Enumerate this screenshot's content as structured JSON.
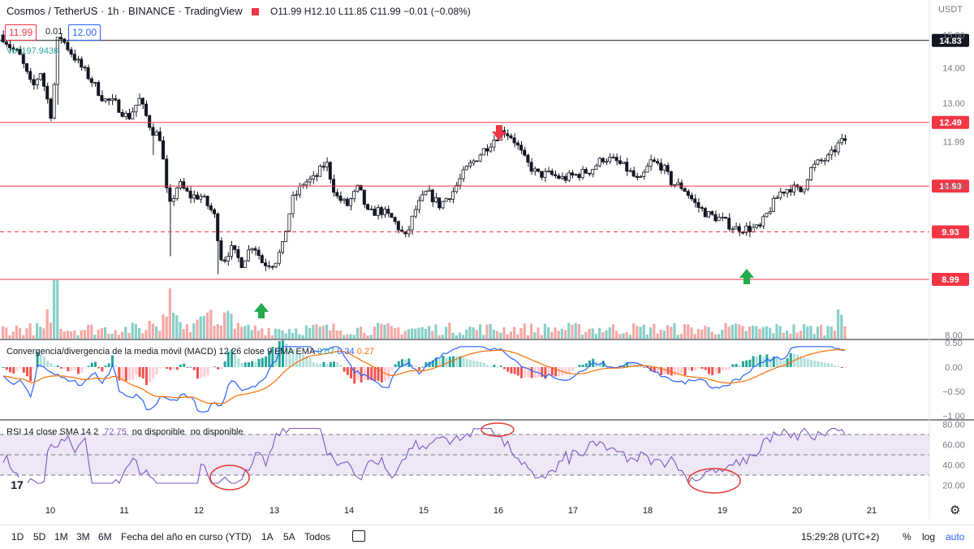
{
  "header": {
    "title": "Cosmos / TetherUS · 1h · BINANCE · TradingView",
    "ohlc": "O11.99 H12.10 L11.85 C11.99 −0.01 (−0.08%)",
    "bid": "11.99",
    "spread": "0.01",
    "ask": "12.00",
    "currency": "USDT"
  },
  "volume_label": "Vol  197.943K",
  "macd_label": "Convergencia/divergencia de la media móvil (MACD) 12 26 close 9 EMA EMA",
  "macd_values": [
    "0.07",
    "0.34",
    "0.27"
  ],
  "rsi_label": "RSI 14 close SMA 14 2",
  "rsi_values": [
    "72.75",
    "no disponible",
    "no disponible"
  ],
  "bottom": {
    "ranges": [
      "1D",
      "5D",
      "1M",
      "3M",
      "6M",
      "Fecha del año en curso (YTD)",
      "1A",
      "5A",
      "Todos"
    ],
    "time": "15:29:28 (UTC+2)",
    "pct": "%",
    "log": "log",
    "auto": "auto"
  },
  "colors": {
    "up": "#26a69a",
    "down": "#ef5350",
    "level_red": "#f23645",
    "macd": "#2962ff",
    "signal": "#ff6d00",
    "rsi": "#7e57c2",
    "rsi_band": "#ede7f6",
    "arrow_up": "#22ab4a",
    "arrow_down": "#f23645",
    "circle": "#e53935"
  },
  "chart_data": [
    {
      "type": "candlestick",
      "title": "Cosmos / TetherUS 1h",
      "x_ticks": [
        "10",
        "11",
        "12",
        "13",
        "14",
        "15",
        "16",
        "17",
        "18",
        "19",
        "20",
        "21"
      ],
      "y_ticks": [
        "15.00",
        "14.00",
        "13.00",
        "11.99",
        "10.93",
        "8.00"
      ],
      "ylim": [
        7.9,
        15.6
      ],
      "scale": "log",
      "levels": [
        {
          "value": 14.83,
          "label": "14.83",
          "color": "#131722",
          "style": "solid"
        },
        {
          "value": 12.49,
          "label": "12.49",
          "color": "#f23645",
          "style": "solid"
        },
        {
          "value": 10.93,
          "label": "10.93",
          "color": "#f23645",
          "style": "solid"
        },
        {
          "value": 9.93,
          "label": "9.93",
          "color": "#f23645",
          "style": "dashed"
        },
        {
          "value": 8.99,
          "label": "8.99",
          "color": "#f23645",
          "style": "solid"
        }
      ],
      "anchors": [
        [
          0,
          15.0
        ],
        [
          12,
          14.6
        ],
        [
          22,
          14.4
        ],
        [
          38,
          13.4
        ],
        [
          48,
          13.9
        ],
        [
          62,
          12.6
        ],
        [
          70,
          15.05
        ],
        [
          82,
          14.6
        ],
        [
          96,
          14.1
        ],
        [
          112,
          13.6
        ],
        [
          126,
          13.1
        ],
        [
          140,
          13.0
        ],
        [
          156,
          12.6
        ],
        [
          170,
          13.1
        ],
        [
          185,
          12.3
        ],
        [
          196,
          12.1
        ],
        [
          206,
          10.4
        ],
        [
          218,
          11.0
        ],
        [
          232,
          10.7
        ],
        [
          246,
          10.7
        ],
        [
          262,
          10.3
        ],
        [
          272,
          9.3
        ],
        [
          282,
          9.6
        ],
        [
          296,
          9.3
        ],
        [
          310,
          9.7
        ],
        [
          322,
          9.3
        ],
        [
          336,
          9.3
        ],
        [
          346,
          9.6
        ],
        [
          358,
          10.6
        ],
        [
          372,
          11.0
        ],
        [
          386,
          11.1
        ],
        [
          400,
          11.5
        ],
        [
          412,
          10.7
        ],
        [
          426,
          10.5
        ],
        [
          440,
          10.9
        ],
        [
          452,
          10.3
        ],
        [
          466,
          10.4
        ],
        [
          482,
          10.2
        ],
        [
          498,
          9.8
        ],
        [
          510,
          10.4
        ],
        [
          524,
          10.8
        ],
        [
          540,
          10.5
        ],
        [
          556,
          10.8
        ],
        [
          572,
          11.3
        ],
        [
          590,
          11.7
        ],
        [
          604,
          12.0
        ],
        [
          618,
          12.3
        ],
        [
          630,
          12.1
        ],
        [
          646,
          11.5
        ],
        [
          660,
          11.2
        ],
        [
          676,
          11.2
        ],
        [
          692,
          11.1
        ],
        [
          710,
          11.2
        ],
        [
          726,
          11.3
        ],
        [
          742,
          11.6
        ],
        [
          758,
          11.5
        ],
        [
          772,
          11.3
        ],
        [
          786,
          11.0
        ],
        [
          800,
          11.5
        ],
        [
          814,
          11.4
        ],
        [
          826,
          11.0
        ],
        [
          840,
          10.9
        ],
        [
          856,
          10.5
        ],
        [
          870,
          10.3
        ],
        [
          886,
          10.2
        ],
        [
          904,
          10.0
        ],
        [
          922,
          10.0
        ],
        [
          934,
          10.0
        ],
        [
          946,
          10.4
        ],
        [
          960,
          10.8
        ],
        [
          972,
          10.9
        ],
        [
          986,
          10.8
        ],
        [
          996,
          11.3
        ],
        [
          1008,
          11.5
        ],
        [
          1020,
          11.6
        ],
        [
          1030,
          11.9
        ],
        [
          1040,
          12.05
        ]
      ]
    },
    {
      "type": "line",
      "title": "MACD 12 26 close 9",
      "y_ticks": [
        "0.50",
        "0.00",
        "−0.50",
        "−1.00"
      ],
      "ylim": [
        -1.0,
        0.5
      ],
      "series": [
        {
          "name": "MACD"
        },
        {
          "name": "Signal"
        },
        {
          "name": "Histogram"
        }
      ]
    },
    {
      "type": "line",
      "title": "RSI 14 close",
      "y_ticks": [
        "80.00",
        "60.00",
        "40.00",
        "20.00"
      ],
      "ylim": [
        10,
        82
      ],
      "bands": [
        30,
        50,
        70
      ]
    }
  ]
}
